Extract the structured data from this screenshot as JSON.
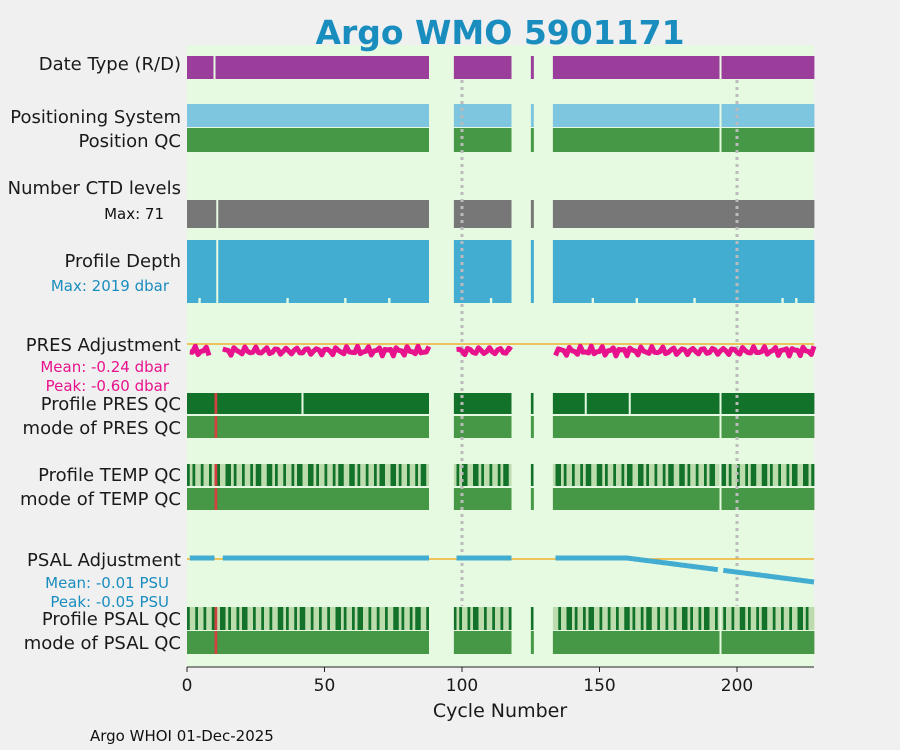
{
  "chart_data": {
    "type": "timeline",
    "title": "Argo WMO 5901171",
    "xlabel": "Cycle Number",
    "xlim": [
      0,
      228
    ],
    "xticks": [
      0,
      50,
      100,
      150,
      200
    ],
    "footer": "Argo WHOI 01-Dec-2025",
    "missing_cycles": [
      [
        89,
        97
      ],
      [
        119,
        125
      ],
      [
        127,
        133
      ]
    ],
    "reference_cycles": [
      100,
      200
    ],
    "panels": {
      "date_type": {
        "label": "Date Type (R/D)",
        "color": "#9b3e9b",
        "gaps": [
          10
        ]
      },
      "positioning_system": {
        "label": "Positioning System",
        "color": "#7ec5e0",
        "gaps": [
          194
        ]
      },
      "position_qc": {
        "label": "Position QC",
        "color": "#469846",
        "gaps": [
          194
        ]
      },
      "ctd_levels": {
        "label": "Number CTD levels",
        "max_label": "Max: 71",
        "color": "#777777",
        "gaps": [
          11
        ]
      },
      "profile_depth": {
        "label": "Profile Depth",
        "max_label": "Max: 2019 dbar",
        "color": "#42acd1",
        "gaps": [
          11
        ]
      },
      "pres_adjustment": {
        "label": "PRES Adjustment",
        "mean_label": "Mean: -0.24 dbar",
        "peak_label": "Peak: -0.60 dbar",
        "mean": -0.24,
        "peak": -0.6,
        "color": "#e8138c"
      },
      "profile_pres_qc": {
        "label": "Profile PRES QC",
        "bad_cycles": [
          11
        ]
      },
      "mode_pres_qc": {
        "label": "mode of PRES QC",
        "bad_cycles": [
          11
        ]
      },
      "profile_temp_qc": {
        "label": "Profile TEMP QC"
      },
      "mode_temp_qc": {
        "label": "mode of TEMP QC"
      },
      "psal_adjustment": {
        "label": "PSAL Adjustment",
        "mean_label": "Mean: -0.01 PSU",
        "peak_label": "Peak: -0.05 PSU",
        "mean": -0.01,
        "peak": -0.05,
        "color": "#42acd1"
      },
      "profile_psal_qc": {
        "label": "Profile PSAL QC"
      },
      "mode_psal_qc": {
        "label": "mode of PSAL QC"
      }
    }
  },
  "colors": {
    "title": "#1a8dbf",
    "panel_bg": "#e6f9e1",
    "qc_good": "#469846",
    "qc_profile_A": "#12722a",
    "qc_profile_light": "#bcdcae",
    "qc_bad": "#d24141",
    "zero_line": "#f0b030",
    "ref_line": "#bbbbbb",
    "pres_label": "#e8138c",
    "psal_label": "#1a8dbf",
    "depth_label": "#1a8dbf"
  }
}
